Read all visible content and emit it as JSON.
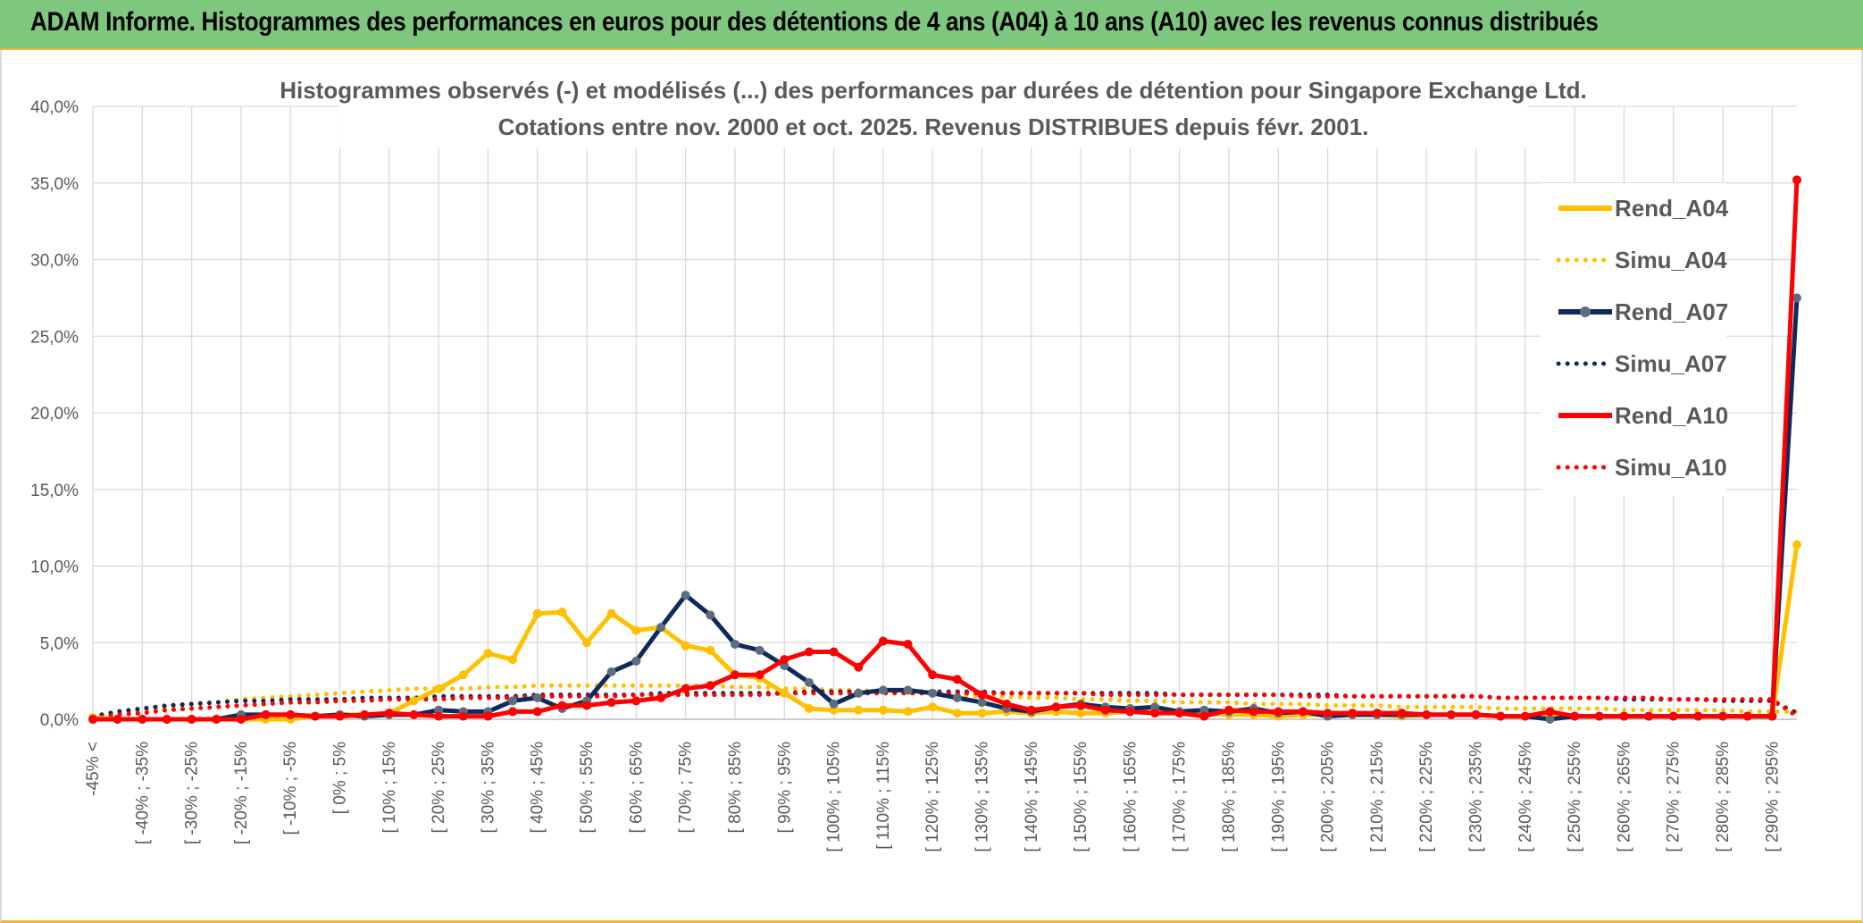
{
  "banner": {
    "title": "ADAM Informe. Histogrammes des performances en euros pour des détentions de 4 ans (A04) à 10 ans (A10) avec les revenus connus distribués",
    "background": "#7dc87e",
    "accent": "#e8b83a"
  },
  "chart_data": {
    "type": "line",
    "title": "Histogrammes observés (-) et modélisés (...) des performances par durées de détention pour Singapore Exchange Ltd.",
    "subtitle": "Cotations entre nov. 2000 et oct. 2025. Revenus DISTRIBUES depuis févr. 2001.",
    "xlabel": "",
    "ylabel": "",
    "ylim": [
      0,
      40
    ],
    "y_ticks": [
      "0,0%",
      "5,0%",
      "10,0%",
      "15,0%",
      "20,0%",
      "25,0%",
      "30,0%",
      "35,0%",
      "40,0%"
    ],
    "grid": true,
    "legend_position": "right",
    "x_tick_labels": [
      "-45% <",
      "[ -40% ; -35%",
      "[ -30% ; -25%",
      "[ -20% ; -15%",
      "[ -10% ; -5%",
      "[ 0% ; 5%",
      "[ 10% ; 15%",
      "[ 20% ; 25%",
      "[ 30% ; 35%",
      "[ 40% ; 45%",
      "[ 50% ; 55%",
      "[ 60% ; 65%",
      "[ 70% ; 75%",
      "[ 80% ; 85%",
      "[ 90% ; 95%",
      "[ 100% ; 105%",
      "[ 110% ; 115%",
      "[ 120% ; 125%",
      "[ 130% ; 135%",
      "[ 140% ; 145%",
      "[ 150% ; 155%",
      "[ 160% ; 165%",
      "[ 170% ; 175%",
      "[ 180% ; 185%",
      "[ 190% ; 195%",
      "[ 200% ; 205%",
      "[ 210% ; 215%",
      "[ 220% ; 225%",
      "[ 230% ; 235%",
      "[ 240% ; 245%",
      "[ 250% ; 255%",
      "[ 260% ; 265%",
      "[ 270% ; 275%",
      "[ 280% ; 285%",
      "[ 290% ; 295%"
    ],
    "num_points": 70,
    "series": [
      {
        "name": "Rend_A04",
        "color": "#ffc000",
        "style": "solid",
        "markers": true,
        "values": [
          0.1,
          0,
          0,
          0,
          0,
          0,
          0,
          0,
          0,
          0.2,
          0.3,
          0.3,
          0.4,
          1.2,
          2,
          2.9,
          4.3,
          3.9,
          6.9,
          7,
          5,
          6.9,
          5.8,
          6,
          4.8,
          4.5,
          2.9,
          2.7,
          1.7,
          0.7,
          0.6,
          0.6,
          0.6,
          0.5,
          0.8,
          0.4,
          0.4,
          0.5,
          0.4,
          0.5,
          0.4,
          0.4,
          0.5,
          0.5,
          0.5,
          0.4,
          0.3,
          0.3,
          0.2,
          0.3,
          0.3,
          0.3,
          0.3,
          0.2,
          0.3,
          0.3,
          0.3,
          0.2,
          0.2,
          0.2,
          0.2,
          0.2,
          0.2,
          0.2,
          0.2,
          0.2,
          0.2,
          0.2,
          0.2,
          11.4
        ]
      },
      {
        "name": "Simu_A04",
        "color": "#ffc000",
        "style": "dotted",
        "markers": false,
        "values": [
          0.2,
          0.4,
          0.6,
          0.8,
          1,
          1.1,
          1.3,
          1.4,
          1.5,
          1.6,
          1.7,
          1.8,
          1.9,
          2,
          2,
          2,
          2.1,
          2.1,
          2.2,
          2.2,
          2.2,
          2.2,
          2.2,
          2.2,
          2.2,
          2.2,
          2.1,
          2.1,
          2,
          2,
          1.9,
          1.9,
          1.8,
          1.7,
          1.7,
          1.6,
          1.5,
          1.5,
          1.4,
          1.4,
          1.3,
          1.3,
          1.2,
          1.2,
          1.1,
          1.1,
          1.1,
          1,
          1,
          1,
          0.9,
          0.9,
          0.9,
          0.8,
          0.8,
          0.8,
          0.8,
          0.7,
          0.7,
          0.7,
          0.7,
          0.7,
          0.6,
          0.6,
          0.6,
          0.6,
          0.6,
          0.5,
          0.5,
          0.5
        ]
      },
      {
        "name": "Rend_A07",
        "color": "#0e2a5c",
        "style": "solid",
        "markers": true,
        "marker_color": "#5a6e80",
        "values": [
          0,
          0,
          0,
          0,
          0,
          0,
          0.3,
          0.3,
          0.3,
          0.2,
          0.3,
          0.2,
          0.3,
          0.3,
          0.6,
          0.5,
          0.5,
          1.2,
          1.4,
          0.7,
          1.2,
          3.1,
          3.8,
          6,
          8.1,
          6.8,
          4.9,
          4.5,
          3.5,
          2.4,
          1,
          1.7,
          1.9,
          1.9,
          1.7,
          1.4,
          1.1,
          0.7,
          0.5,
          0.8,
          1,
          0.8,
          0.7,
          0.8,
          0.5,
          0.6,
          0.5,
          0.7,
          0.4,
          0.5,
          0.2,
          0.3,
          0.3,
          0.3,
          0.3,
          0.3,
          0.3,
          0.2,
          0.2,
          0,
          0.2,
          0.2,
          0.2,
          0.2,
          0.2,
          0.2,
          0.2,
          0.2,
          0.2,
          27.5
        ]
      },
      {
        "name": "Simu_A07",
        "color": "#0e2a5c",
        "style": "dotted",
        "markers": false,
        "values": [
          0.2,
          0.5,
          0.7,
          0.9,
          1,
          1.1,
          1.2,
          1.2,
          1.3,
          1.3,
          1.3,
          1.4,
          1.4,
          1.4,
          1.5,
          1.5,
          1.5,
          1.5,
          1.6,
          1.6,
          1.6,
          1.6,
          1.6,
          1.7,
          1.7,
          1.7,
          1.7,
          1.7,
          1.7,
          1.8,
          1.8,
          1.8,
          1.8,
          1.8,
          1.8,
          1.8,
          1.8,
          1.7,
          1.7,
          1.7,
          1.7,
          1.7,
          1.7,
          1.7,
          1.6,
          1.6,
          1.6,
          1.6,
          1.6,
          1.6,
          1.6,
          1.5,
          1.5,
          1.5,
          1.5,
          1.5,
          1.5,
          1.4,
          1.4,
          1.4,
          1.4,
          1.4,
          1.3,
          1.3,
          1.3,
          1.3,
          1.2,
          1.2,
          1.2,
          0.4
        ]
      },
      {
        "name": "Rend_A10",
        "color": "#ff0000",
        "style": "solid",
        "markers": true,
        "values": [
          0,
          0,
          0,
          0,
          0,
          0,
          0,
          0.3,
          0.3,
          0.2,
          0.2,
          0.3,
          0.4,
          0.3,
          0.2,
          0.2,
          0.2,
          0.5,
          0.5,
          0.9,
          0.9,
          1.1,
          1.2,
          1.4,
          2,
          2.2,
          2.9,
          2.9,
          3.9,
          4.4,
          4.4,
          3.4,
          5.1,
          4.9,
          2.9,
          2.6,
          1.6,
          1,
          0.6,
          0.8,
          0.9,
          0.6,
          0.5,
          0.4,
          0.4,
          0.2,
          0.6,
          0.5,
          0.5,
          0.5,
          0.4,
          0.4,
          0.4,
          0.4,
          0.3,
          0.3,
          0.3,
          0.2,
          0.2,
          0.5,
          0.2,
          0.2,
          0.2,
          0.2,
          0.2,
          0.2,
          0.2,
          0.2,
          0.2,
          35.2
        ]
      },
      {
        "name": "Simu_A10",
        "color": "#ff0000",
        "style": "dotted",
        "markers": false,
        "values": [
          0.1,
          0.3,
          0.4,
          0.6,
          0.7,
          0.8,
          0.9,
          1,
          1.1,
          1.1,
          1.2,
          1.2,
          1.3,
          1.3,
          1.3,
          1.4,
          1.4,
          1.4,
          1.5,
          1.5,
          1.5,
          1.5,
          1.6,
          1.6,
          1.6,
          1.6,
          1.6,
          1.6,
          1.7,
          1.7,
          1.7,
          1.7,
          1.7,
          1.7,
          1.7,
          1.7,
          1.7,
          1.7,
          1.7,
          1.7,
          1.7,
          1.6,
          1.6,
          1.6,
          1.6,
          1.6,
          1.6,
          1.6,
          1.6,
          1.5,
          1.5,
          1.5,
          1.5,
          1.5,
          1.5,
          1.5,
          1.5,
          1.4,
          1.4,
          1.4,
          1.4,
          1.4,
          1.4,
          1.4,
          1.3,
          1.3,
          1.3,
          1.3,
          1.3,
          0.2
        ]
      }
    ]
  }
}
